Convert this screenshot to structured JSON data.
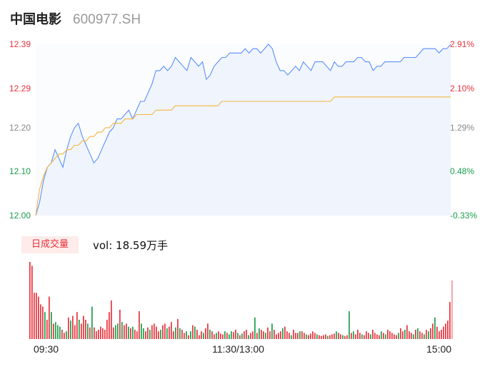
{
  "header": {
    "stock_name": "中国电影",
    "stock_code": "600977.SH"
  },
  "chart_data": [
    {
      "type": "line",
      "series": [
        {
          "role": "price",
          "color": "#5b8ff9",
          "values": [
            12.0,
            12.03,
            12.08,
            12.11,
            12.12,
            12.15,
            12.13,
            12.11,
            12.15,
            12.18,
            12.2,
            12.21,
            12.18,
            12.16,
            12.14,
            12.12,
            12.13,
            12.15,
            12.17,
            12.19,
            12.2,
            12.22,
            12.22,
            12.23,
            12.24,
            12.22,
            12.24,
            12.26,
            12.26,
            12.28,
            12.3,
            12.33,
            12.33,
            12.34,
            12.33,
            12.34,
            12.36,
            12.35,
            12.34,
            12.33,
            12.36,
            12.35,
            12.34,
            12.35,
            12.31,
            12.32,
            12.34,
            12.35,
            12.36,
            12.36,
            12.37,
            12.37,
            12.37,
            12.37,
            12.38,
            12.37,
            12.38,
            12.38,
            12.37,
            12.38,
            12.39,
            12.38,
            12.35,
            12.33,
            12.33,
            12.32,
            12.33,
            12.34,
            12.33,
            12.35,
            12.34,
            12.33,
            12.35,
            12.35,
            12.35,
            12.34,
            12.33,
            12.35,
            12.34,
            12.34,
            12.35,
            12.35,
            12.35,
            12.36,
            12.36,
            12.35,
            12.35,
            12.33,
            12.34,
            12.34,
            12.35,
            12.35,
            12.35,
            12.35,
            12.35,
            12.36,
            12.36,
            12.36,
            12.36,
            12.37,
            12.38,
            12.38,
            12.38,
            12.38,
            12.37,
            12.38,
            12.38,
            12.39
          ]
        },
        {
          "role": "average",
          "color": "#f5b53f",
          "values": [
            12.0,
            12.06,
            12.09,
            12.11,
            12.12,
            12.13,
            12.14,
            12.14,
            12.15,
            12.15,
            12.16,
            12.16,
            12.17,
            12.17,
            12.18,
            12.18,
            12.19,
            12.19,
            12.2,
            12.2,
            12.21,
            12.21,
            12.21,
            12.22,
            12.22,
            12.22,
            12.23,
            12.23,
            12.23,
            12.23,
            12.23,
            12.24,
            12.24,
            12.24,
            12.24,
            12.24,
            12.25,
            12.25,
            12.25,
            12.25,
            12.25,
            12.25,
            12.25,
            12.25,
            12.25,
            12.25,
            12.25,
            12.25,
            12.26,
            12.26,
            12.26,
            12.26,
            12.26,
            12.26,
            12.26,
            12.26,
            12.26,
            12.26,
            12.26,
            12.26,
            12.26,
            12.26,
            12.26,
            12.26,
            12.26,
            12.26,
            12.26,
            12.26,
            12.26,
            12.26,
            12.26,
            12.26,
            12.26,
            12.26,
            12.26,
            12.26,
            12.26,
            12.27,
            12.27,
            12.27,
            12.27,
            12.27,
            12.27,
            12.27,
            12.27,
            12.27,
            12.27,
            12.27,
            12.27,
            12.27,
            12.27,
            12.27,
            12.27,
            12.27,
            12.27,
            12.27,
            12.27,
            12.27,
            12.27,
            12.27,
            12.27,
            12.27,
            12.27,
            12.27,
            12.27,
            12.27,
            12.27,
            12.27
          ]
        }
      ],
      "ylim": [
        12.0,
        12.39
      ],
      "left_ticks": [
        {
          "label": "12.39",
          "value": 12.39,
          "color": "#e8323c"
        },
        {
          "label": "12.29",
          "value": 12.29,
          "color": "#e8323c"
        },
        {
          "label": "12.20",
          "value": 12.2,
          "color": "#888888"
        },
        {
          "label": "12.10",
          "value": 12.1,
          "color": "#1aa04a"
        },
        {
          "label": "12.00",
          "value": 12.0,
          "color": "#1aa04a"
        }
      ],
      "right_ticks": [
        {
          "label": "2.91%",
          "value": 12.39,
          "color": "#e8323c"
        },
        {
          "label": "2.10%",
          "value": 12.29,
          "color": "#e8323c"
        },
        {
          "label": "1.29%",
          "value": 12.2,
          "color": "#888888"
        },
        {
          "label": "0.48%",
          "value": 12.1,
          "color": "#1aa04a"
        },
        {
          "label": "-0.33%",
          "value": 12.0,
          "color": "#1aa04a"
        }
      ]
    },
    {
      "type": "bar",
      "volume_badge": "日成交量",
      "volume_text": "vol: 18.59万手",
      "x_ticks": [
        "09:30",
        "11:30/13:00",
        "15:00"
      ],
      "up_color": "#e8323c",
      "down_color": "#1aa04a",
      "values": [
        100,
        95,
        60,
        60,
        55,
        45,
        42,
        35,
        25,
        55,
        35,
        20,
        22,
        18,
        16,
        12,
        8,
        10,
        28,
        24,
        30,
        18,
        35,
        25,
        20,
        30,
        25,
        20,
        15,
        42,
        15,
        10,
        12,
        16,
        14,
        12,
        25,
        35,
        50,
        15,
        18,
        20,
        38,
        22,
        18,
        20,
        16,
        14,
        16,
        12,
        10,
        36,
        20,
        14,
        10,
        15,
        12,
        18,
        20,
        16,
        10,
        12,
        18,
        20,
        14,
        16,
        22,
        10,
        15,
        26,
        14,
        12,
        8,
        10,
        5,
        10,
        18,
        16,
        12,
        5,
        10,
        8,
        14,
        20,
        12,
        10,
        6,
        8,
        10,
        7,
        6,
        10,
        8,
        6,
        10,
        9,
        12,
        8,
        5,
        7,
        10,
        12,
        5,
        8,
        10,
        28,
        8,
        14,
        12,
        10,
        8,
        15,
        10,
        20,
        12,
        6,
        8,
        10,
        14,
        16,
        10,
        8,
        5,
        12,
        8,
        8,
        10,
        10,
        8,
        6,
        5,
        7,
        10,
        8,
        6,
        5,
        4,
        5,
        6,
        4,
        5,
        6,
        7,
        10,
        8,
        6,
        5,
        4,
        5,
        36,
        8,
        10,
        6,
        12,
        8,
        6,
        5,
        10,
        8,
        6,
        12,
        8,
        6,
        5,
        10,
        8,
        6,
        12,
        10,
        8,
        6,
        5,
        8,
        14,
        10,
        12,
        18,
        10,
        8,
        6,
        12,
        14,
        10,
        8,
        6,
        12,
        10,
        14,
        20,
        28,
        16,
        10,
        12,
        16,
        20,
        24,
        48,
        76
      ],
      "ups": [
        1,
        1,
        1,
        1,
        1,
        1,
        1,
        0,
        1,
        1,
        0,
        1,
        0,
        0,
        0,
        1,
        1,
        0,
        1,
        0,
        1,
        1,
        1,
        0,
        1,
        1,
        1,
        0,
        1,
        0,
        1,
        1,
        1,
        1,
        1,
        1,
        1,
        1,
        1,
        1,
        0,
        0,
        1,
        0,
        1,
        1,
        0,
        1,
        0,
        1,
        1,
        1,
        0,
        0,
        1,
        1,
        0,
        1,
        1,
        1,
        1,
        0,
        1,
        1,
        0,
        1,
        1,
        1,
        0,
        1,
        0,
        1,
        1,
        0,
        1,
        0,
        1,
        0,
        1,
        1,
        1,
        0,
        1,
        1,
        0,
        1,
        1,
        0,
        1,
        1,
        1,
        0,
        1,
        0,
        0,
        1,
        1,
        0,
        1,
        0,
        1,
        1,
        0,
        1,
        1,
        0,
        1,
        0,
        1,
        1,
        0,
        1,
        1,
        0,
        1,
        1,
        1,
        1,
        0,
        1,
        1,
        1,
        0,
        1,
        1,
        1,
        0,
        1,
        1,
        0,
        1,
        1,
        1,
        1,
        0,
        1,
        1,
        1,
        1,
        0,
        1,
        1,
        1,
        0,
        1,
        1,
        0,
        1,
        1,
        0,
        1,
        0,
        1,
        1,
        1,
        0,
        1,
        1,
        1,
        0,
        1,
        1,
        1,
        1,
        0,
        1,
        0,
        1,
        1,
        1,
        1,
        1,
        0,
        1,
        1,
        0,
        1,
        1,
        1,
        0,
        1,
        0,
        1,
        1,
        0,
        1,
        0,
        1,
        1,
        0,
        1,
        1,
        1,
        1,
        1,
        1,
        1,
        1
      ]
    }
  ]
}
